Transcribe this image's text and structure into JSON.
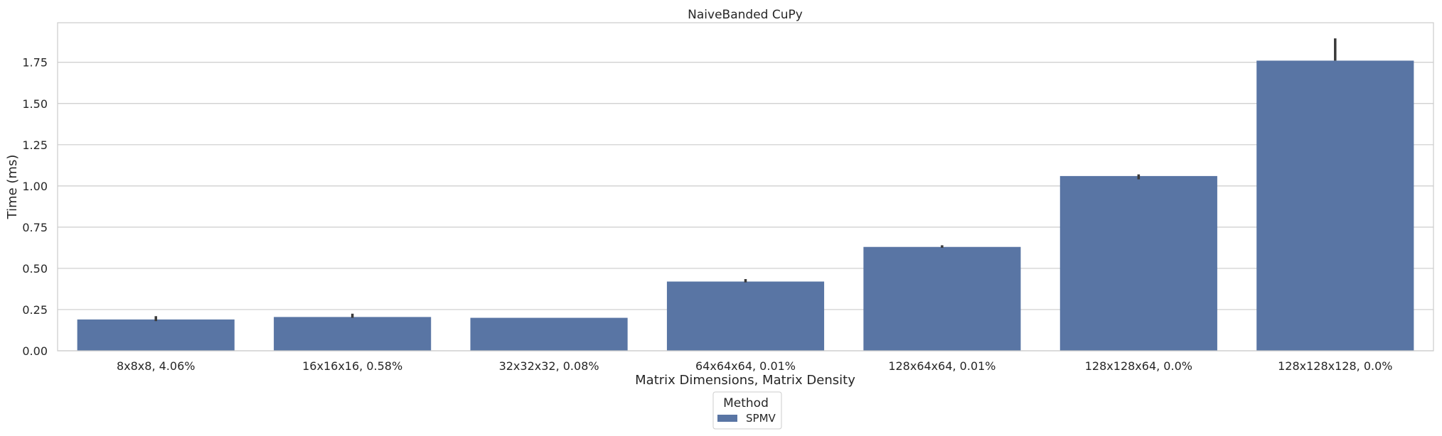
{
  "chart_data": {
    "type": "bar",
    "title": "NaiveBanded CuPy",
    "xlabel": "Matrix Dimensions, Matrix Density",
    "ylabel": "Time (ms)",
    "categories": [
      "8x8x8, 4.06%",
      "16x16x16, 0.58%",
      "32x32x32, 0.08%",
      "64x64x64, 0.01%",
      "128x64x64, 0.01%",
      "128x128x64, 0.0%",
      "128x128x128, 0.0%"
    ],
    "series": [
      {
        "name": "SPMV",
        "color": "#5975a4",
        "values": [
          0.19,
          0.205,
          0.2,
          0.42,
          0.63,
          1.06,
          1.76
        ],
        "error_low": [
          0.18,
          0.2,
          0.2,
          0.415,
          0.625,
          1.04,
          1.76
        ],
        "error_high": [
          0.21,
          0.225,
          0.2,
          0.435,
          0.64,
          1.07,
          1.895
        ]
      }
    ],
    "ylim": [
      0,
      1.99
    ],
    "yticks": [
      0.0,
      0.25,
      0.5,
      0.75,
      1.0,
      1.25,
      1.5,
      1.75
    ],
    "ytick_labels": [
      "0.00",
      "0.25",
      "0.50",
      "0.75",
      "1.00",
      "1.25",
      "1.50",
      "1.75"
    ],
    "grid": "horizontal",
    "legend": {
      "title": "Method",
      "placement": "bottom-center"
    },
    "colors": {
      "bar": "#5975a4",
      "grid": "#cccccc",
      "spine": "#cccccc",
      "error": "#3a3a3a"
    }
  }
}
